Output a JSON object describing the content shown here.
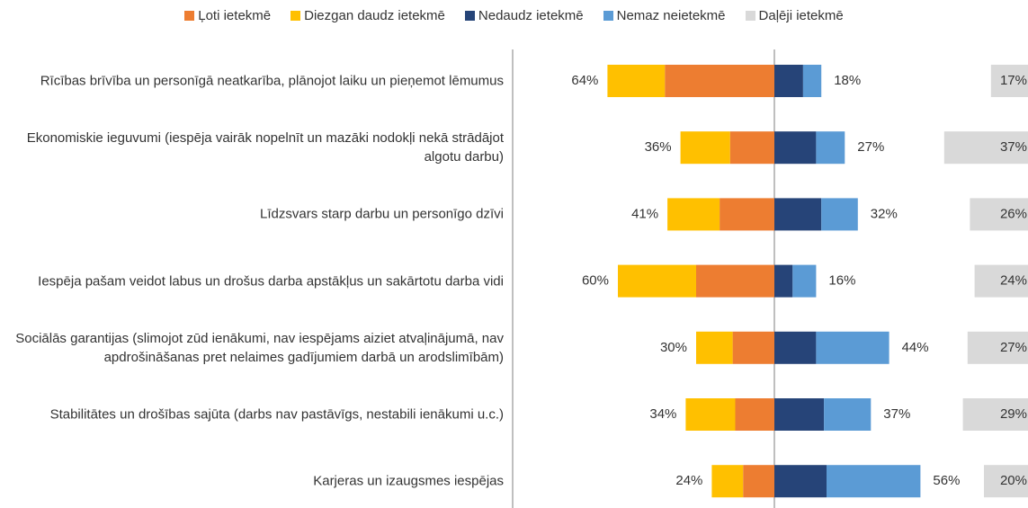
{
  "chart_data": {
    "type": "diverging_bar",
    "categories": [
      "Rīcības brīvība un personīgā neatkarība, plānojot laiku un pieņemot lēmumus",
      "Ekonomiskie ieguvumi (iespēja vairāk nopelnīt un mazāki nodokļi nekā strādājot algotu darbu)",
      "Līdzsvars starp darbu un personīgo dzīvi",
      "Iespēja pašam veidot labus un drošus darba apstākļus un sakārtotu darba vidi",
      "Sociālās garantijas (slimojot zūd ienākumi, nav iespējams aiziet atvaļinājumā, nav apdrošināšanas pret nelaimes gadījumiem darbā un arodslimībām)",
      "Stabilitātes un drošības sajūta (darbs nav pastāvīgs, nestabili ienākumi u.c.)",
      "Karjeras un izaugsmes iespējas"
    ],
    "series": [
      {
        "name": "Ļoti ietekmē",
        "color": "#ED7D31",
        "side": "left",
        "values": [
          42,
          17,
          21,
          30,
          16,
          15,
          12
        ]
      },
      {
        "name": "Diezgan daudz ietekmē",
        "color": "#FFC000",
        "side": "left",
        "values": [
          22,
          19,
          20,
          30,
          14,
          19,
          12
        ]
      },
      {
        "name": "Nedaudz ietekmē",
        "color": "#264478",
        "side": "right",
        "values": [
          11,
          16,
          18,
          7,
          16,
          19,
          20
        ]
      },
      {
        "name": "Nemaz neietekmē",
        "color": "#5B9BD5",
        "side": "right",
        "values": [
          7,
          11,
          14,
          9,
          28,
          18,
          36
        ]
      },
      {
        "name": "Daļēji ietekmē",
        "color": "#D9D9D9",
        "side": "separate",
        "values": [
          17,
          37,
          26,
          24,
          27,
          29,
          20
        ],
        "value_labels": [
          "17%",
          "37%",
          "26%",
          "24%",
          "27%",
          "29%",
          "20%"
        ]
      }
    ],
    "left_totals": {
      "values": [
        64,
        36,
        41,
        60,
        30,
        34,
        24
      ],
      "value_labels": [
        "64%",
        "36%",
        "41%",
        "60%",
        "30%",
        "34%",
        "24%"
      ]
    },
    "right_totals": {
      "values": [
        18,
        27,
        32,
        16,
        44,
        37,
        56
      ],
      "value_labels": [
        "18%",
        "27%",
        "32%",
        "16%",
        "44%",
        "37%",
        "56%"
      ]
    }
  }
}
